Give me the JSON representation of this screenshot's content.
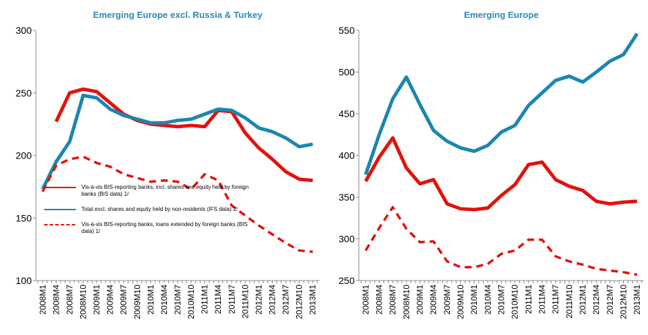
{
  "chart_data": [
    {
      "type": "line",
      "title": "Emerging Europe excl. Russia & Turkey",
      "categories": [
        "2008M1",
        "2008M4",
        "2008M7",
        "2008M10",
        "2009M1",
        "2009M4",
        "2009M7",
        "2009M10",
        "2010M1",
        "2010M4",
        "2010M7",
        "2010M10",
        "2011M1",
        "2011M4",
        "2011M7",
        "2011M10",
        "2012M1",
        "2012M4",
        "2012M7",
        "2012M10",
        "2013M1"
      ],
      "ylim": [
        100,
        300
      ],
      "yticks": [
        100,
        150,
        200,
        250,
        300
      ],
      "grid": false,
      "legend": "lower left",
      "series": [
        {
          "name": "Vis-à-vis BIS-reporting  banks, incl. shares and equity held by foreign banks (BIS data) 1/",
          "color": "#e3120b",
          "style": "solid",
          "values": [
            null,
            227,
            250,
            253,
            251,
            242,
            233,
            228,
            225,
            224,
            223,
            224,
            223,
            236,
            235,
            218,
            206,
            197,
            187,
            181,
            180
          ]
        },
        {
          "name": "Total excl. shares and equity held  by non-residents  (IFS data) 2/",
          "color": "#1b86b0",
          "style": "solid",
          "values": [
            173,
            195,
            211,
            248,
            246,
            237,
            232,
            229,
            226,
            226,
            228,
            229,
            233,
            237,
            236,
            230,
            222,
            219,
            214,
            207,
            209
          ]
        },
        {
          "name": "Vis-à-vis BIS-reporting  banks, loans extended  by foreign banks (BIS data) 1/",
          "color": "#e3120b",
          "style": "dashed",
          "values": [
            171,
            192,
            197,
            199,
            194,
            191,
            185,
            182,
            179,
            180,
            179,
            173,
            185,
            180,
            160,
            152,
            144,
            137,
            130,
            124,
            123
          ]
        }
      ]
    },
    {
      "type": "line",
      "title": "Emerging Europe",
      "categories": [
        "2008M1",
        "2008M4",
        "2008M7",
        "2008M10",
        "2009M1",
        "2009M4",
        "2009M7",
        "2009M10",
        "2010M1",
        "2010M4",
        "2010M7",
        "2010M10",
        "2011M1",
        "2011M4",
        "2011M7",
        "2011M10",
        "2012M1",
        "2012M4",
        "2012M7",
        "2012M10",
        "2013M1"
      ],
      "ylim": [
        250,
        550
      ],
      "yticks": [
        250,
        300,
        350,
        400,
        450,
        500,
        550
      ],
      "grid": false,
      "series": [
        {
          "color": "#e3120b",
          "style": "solid",
          "values": [
            369,
            398,
            421,
            385,
            366,
            371,
            342,
            336,
            335,
            337,
            352,
            365,
            389,
            392,
            371,
            363,
            358,
            345,
            342,
            344,
            345
          ]
        },
        {
          "color": "#1b86b0",
          "style": "solid",
          "values": [
            377,
            425,
            468,
            494,
            461,
            430,
            417,
            409,
            405,
            412,
            428,
            436,
            460,
            475,
            490,
            495,
            488,
            500,
            513,
            521,
            546
          ]
        },
        {
          "color": "#e3120b",
          "style": "dashed",
          "values": [
            286,
            313,
            338,
            312,
            296,
            297,
            273,
            266,
            266,
            270,
            282,
            286,
            299,
            299,
            279,
            273,
            269,
            264,
            262,
            260,
            257
          ]
        }
      ]
    }
  ]
}
